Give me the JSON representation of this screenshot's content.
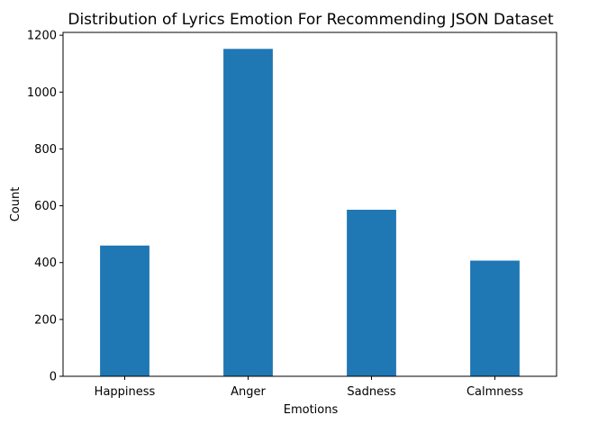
{
  "chart_data": {
    "type": "bar",
    "title": "Distribution of Lyrics Emotion For Recommending JSON Dataset",
    "xlabel": "Emotions",
    "ylabel": "Count",
    "categories": [
      "Happiness",
      "Anger",
      "Sadness",
      "Calmness"
    ],
    "values": [
      460,
      1152,
      586,
      407
    ],
    "ylim": [
      0,
      1210
    ],
    "yticks": [
      0,
      200,
      400,
      600,
      800,
      1000,
      1200
    ],
    "grid": false,
    "legend": "none",
    "bar_color": "#1f77b4"
  }
}
